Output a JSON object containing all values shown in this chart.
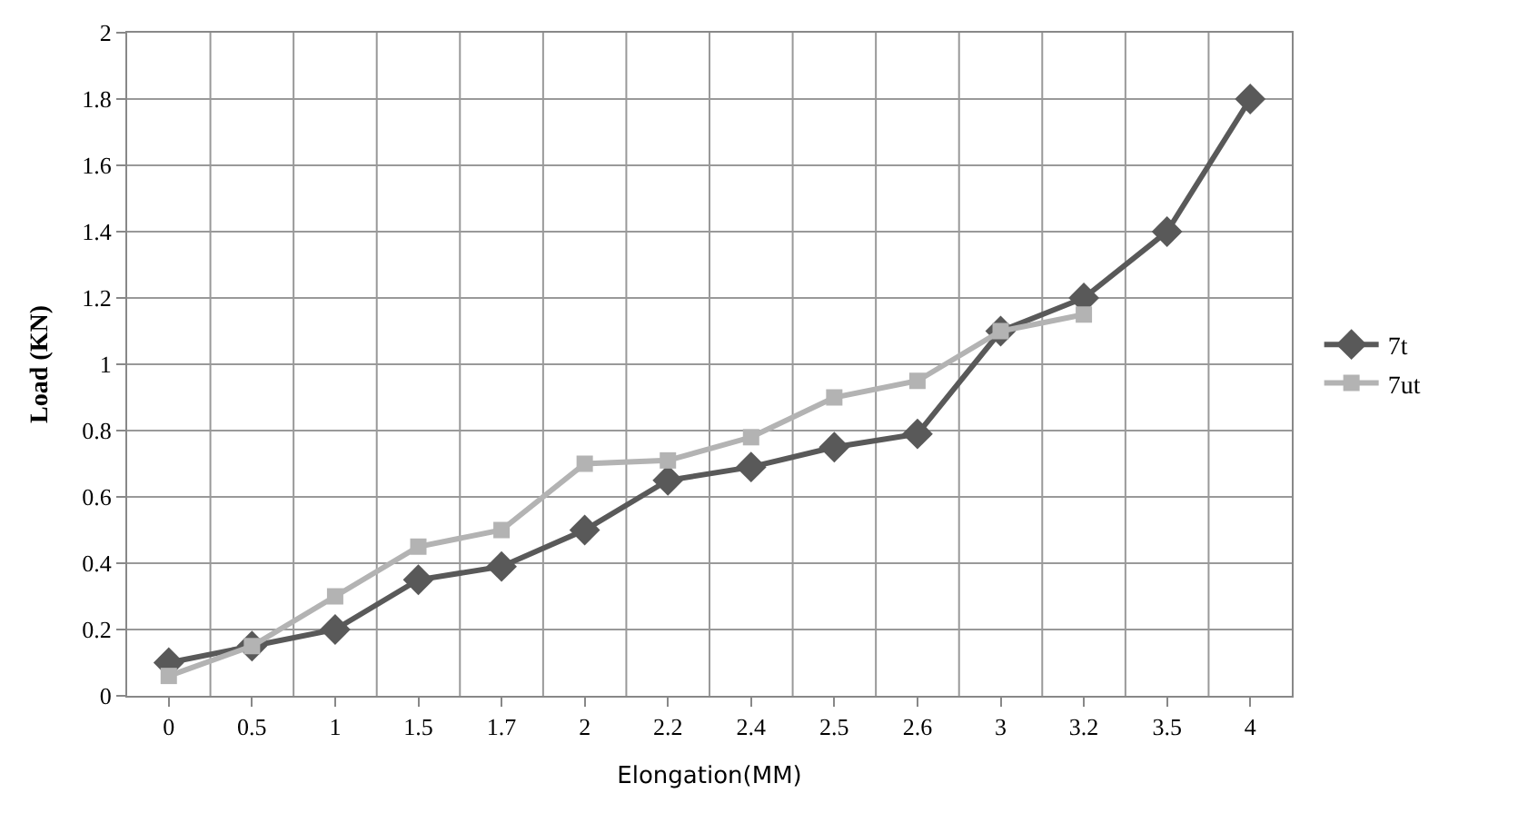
{
  "chart_data": {
    "type": "line",
    "xlabel": "Elongation(MM)",
    "ylabel": "Load (KN)",
    "categories": [
      "0",
      "0.5",
      "1",
      "1.5",
      "1.7",
      "2",
      "2.2",
      "2.4",
      "2.5",
      "2.6",
      "3",
      "3.2",
      "3.5",
      "4"
    ],
    "series": [
      {
        "name": "7t",
        "color": "#595959",
        "marker": "diamond",
        "values": [
          0.1,
          0.15,
          0.2,
          0.35,
          0.39,
          0.5,
          0.65,
          0.69,
          0.75,
          0.79,
          1.1,
          1.2,
          1.4,
          1.8
        ]
      },
      {
        "name": "7ut",
        "color": "#b3b3b3",
        "marker": "square",
        "values": [
          0.06,
          0.15,
          0.3,
          0.45,
          0.5,
          0.7,
          0.71,
          0.78,
          0.9,
          0.95,
          1.1,
          1.15,
          null,
          null
        ]
      }
    ],
    "ylim": [
      0,
      2
    ],
    "yticks": [
      0,
      0.2,
      0.4,
      0.6,
      0.8,
      1,
      1.2,
      1.4,
      1.6,
      1.8,
      2
    ],
    "grid": true,
    "legend": "right",
    "line_style": "solid"
  }
}
